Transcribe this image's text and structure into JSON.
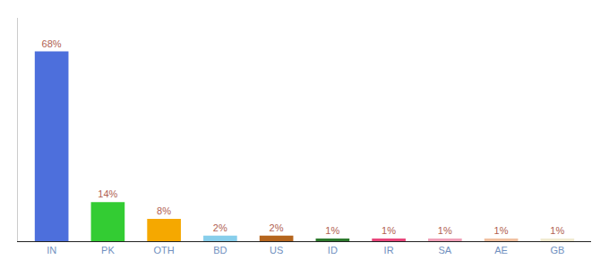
{
  "chart_data": {
    "type": "bar",
    "categories": [
      "IN",
      "PK",
      "OTH",
      "BD",
      "US",
      "ID",
      "IR",
      "SA",
      "AE",
      "GB"
    ],
    "values": [
      68,
      14,
      8,
      2,
      2,
      1,
      1,
      1,
      1,
      1
    ],
    "value_labels": [
      "68%",
      "14%",
      "8%",
      "2%",
      "2%",
      "1%",
      "1%",
      "1%",
      "1%",
      "1%"
    ],
    "colors": [
      "#4d6fdc",
      "#33cc33",
      "#f5a800",
      "#87ceeb",
      "#b5651d",
      "#2d7a2d",
      "#e8457a",
      "#f0a0b8",
      "#f0c0a0",
      "#f0ead0"
    ],
    "ylim": [
      0,
      80
    ],
    "yticks": [],
    "grid": false,
    "data_labels": true,
    "tick_labels": "x"
  }
}
